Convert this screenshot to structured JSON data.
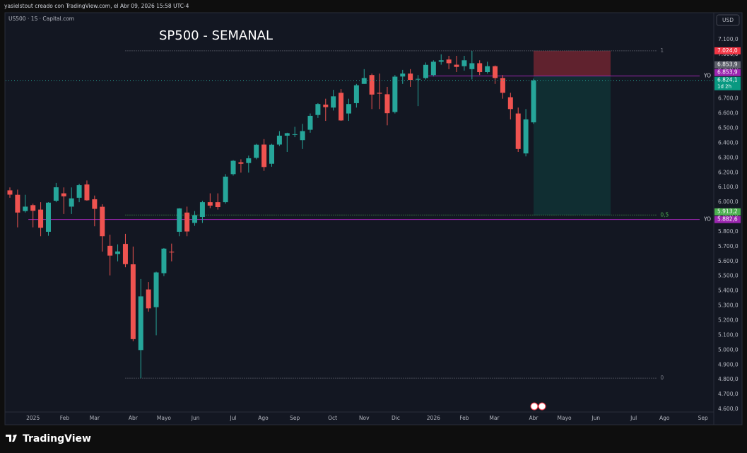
{
  "header": {
    "credit": "yasielstout creado con TradingView.com, el Abr 09, 2026 15:58 UTC-4"
  },
  "footer": {
    "brand": "TradingView"
  },
  "chart_data": {
    "type": "candlestick",
    "symbol": "US500 · 1S · Capital.com",
    "title": "SP500 - SEMANAL",
    "currency": "USD",
    "up_color": "#26a69a",
    "down_color": "#ef5350",
    "grid": false,
    "x": [
      0,
      1,
      2,
      3,
      4,
      5,
      6,
      7,
      8,
      9,
      10,
      11,
      12,
      13,
      14,
      15,
      16,
      17,
      18,
      19,
      20,
      21,
      22,
      23,
      24,
      25,
      26,
      27,
      28,
      29,
      30,
      31,
      32,
      33,
      34,
      35,
      36,
      37,
      38,
      39,
      40,
      41,
      42,
      43,
      44,
      45,
      46,
      47,
      48,
      49,
      50,
      51,
      52,
      53,
      54,
      55,
      56,
      57,
      58,
      59,
      60,
      61,
      62,
      63,
      64,
      65,
      66,
      67,
      68
    ],
    "open": [
      6080,
      6050,
      5940,
      5980,
      5950,
      5800,
      6010,
      6060,
      5970,
      6030,
      6120,
      6020,
      5969,
      5705,
      5650,
      5718,
      5580,
      5000,
      5410,
      5290,
      5520,
      5665,
      5800,
      5930,
      5860,
      5900,
      6000,
      6000,
      6000,
      6190,
      6270,
      6265,
      6300,
      6390,
      6260,
      6390,
      6450,
      6460,
      6420,
      6490,
      6590,
      6660,
      6640,
      6740,
      6600,
      6670,
      6800,
      6860,
      6740,
      6730,
      6610,
      6850,
      6870,
      6830,
      6840,
      6860,
      6950,
      6965,
      6930,
      6920,
      6900,
      6940,
      6880,
      6920,
      6840,
      6710,
      6600,
      6330,
      6540
    ],
    "high": [
      6100,
      6085,
      6050,
      5990,
      6000,
      6000,
      6130,
      6100,
      6100,
      6125,
      6147,
      6045,
      5986,
      5780,
      5715,
      5786,
      5700,
      5480,
      5460,
      5530,
      5690,
      5720,
      5960,
      5970,
      5940,
      6010,
      6060,
      6060,
      6190,
      6285,
      6290,
      6315,
      6395,
      6427,
      6395,
      6481,
      6470,
      6510,
      6530,
      6600,
      6670,
      6700,
      6760,
      6765,
      6700,
      6800,
      6900,
      6870,
      6870,
      6780,
      6860,
      6895,
      6900,
      6860,
      6945,
      6960,
      7000,
      6990,
      6990,
      6990,
      7024,
      6960,
      6950,
      6925,
      6860,
      6740,
      6640,
      6630,
      6835
    ],
    "low": [
      6030,
      5830,
      5930,
      5830,
      5770,
      5773,
      6000,
      5920,
      5920,
      6000,
      6010,
      5837,
      5666,
      5505,
      5600,
      5560,
      5060,
      4810,
      5260,
      5100,
      5500,
      5600,
      5770,
      5770,
      5840,
      5860,
      5960,
      5950,
      5990,
      6180,
      6200,
      6200,
      6290,
      6212,
      6240,
      6380,
      6340,
      6440,
      6360,
      6470,
      6570,
      6550,
      6620,
      6550,
      6550,
      6640,
      6800,
      6630,
      6630,
      6520,
      6600,
      6800,
      6780,
      6650,
      6830,
      6850,
      6930,
      6900,
      6880,
      6890,
      6830,
      6860,
      6870,
      6800,
      6700,
      6560,
      6340,
      6310,
      6530
    ],
    "close": [
      6051,
      5930,
      5970,
      5942,
      5827,
      5997,
      6101,
      6040,
      6026,
      6115,
      6013,
      5955,
      5770,
      5639,
      5667,
      5581,
      5074,
      5363,
      5282,
      5525,
      5686,
      5660,
      5958,
      5802,
      5912,
      6000,
      5977,
      5967,
      6173,
      6280,
      6260,
      6297,
      6389,
      6238,
      6389,
      6450,
      6467,
      6460,
      6481,
      6584,
      6664,
      6643,
      6716,
      6553,
      6664,
      6791,
      6840,
      6728,
      6734,
      6602,
      6849,
      6870,
      6827,
      6834,
      6929,
      6950,
      6960,
      6940,
      6915,
      6960,
      6940,
      6880,
      6920,
      6840,
      6740,
      6630,
      6360,
      6560,
      6824.1
    ],
    "xlim": [
      -0.55,
      91.4
    ],
    "xticks": [
      {
        "value": 3,
        "label": "2025"
      },
      {
        "value": 7.1,
        "label": "Feb"
      },
      {
        "value": 11,
        "label": "Mar"
      },
      {
        "value": 16,
        "label": "Abr"
      },
      {
        "value": 20,
        "label": "Mayo"
      },
      {
        "value": 24.1,
        "label": "Jun"
      },
      {
        "value": 29,
        "label": "Jul"
      },
      {
        "value": 32.9,
        "label": "Ago"
      },
      {
        "value": 37,
        "label": "Sep"
      },
      {
        "value": 41.9,
        "label": "Oct"
      },
      {
        "value": 46,
        "label": "Nov"
      },
      {
        "value": 50.1,
        "label": "Dic"
      },
      {
        "value": 55,
        "label": "2026"
      },
      {
        "value": 59,
        "label": "Feb"
      },
      {
        "value": 62.9,
        "label": "Mar"
      },
      {
        "value": 68,
        "label": "Abr"
      },
      {
        "value": 72,
        "label": "Mayo"
      },
      {
        "value": 76.1,
        "label": "Jun"
      },
      {
        "value": 81,
        "label": "Jul"
      },
      {
        "value": 85,
        "label": "Ago"
      },
      {
        "value": 90,
        "label": "Sep"
      }
    ],
    "ylim": [
      4581,
      7272
    ],
    "yticks": [
      {
        "value": 4600,
        "label": "4.600,0"
      },
      {
        "value": 4700,
        "label": "4.700,0"
      },
      {
        "value": 4800,
        "label": "4.800,0"
      },
      {
        "value": 4900,
        "label": "4.900,0"
      },
      {
        "value": 5000,
        "label": "5.000,0"
      },
      {
        "value": 5100,
        "label": "5.100,0"
      },
      {
        "value": 5200,
        "label": "5.200,0"
      },
      {
        "value": 5300,
        "label": "5.300,0"
      },
      {
        "value": 5400,
        "label": "5.400,0"
      },
      {
        "value": 5500,
        "label": "5.500,0"
      },
      {
        "value": 5600,
        "label": "5.600,0"
      },
      {
        "value": 5700,
        "label": "5.700,0"
      },
      {
        "value": 5800,
        "label": "5.800,0"
      },
      {
        "value": 5900,
        "label": "5.900,0"
      },
      {
        "value": 6000,
        "label": "6.000,0"
      },
      {
        "value": 6100,
        "label": "6.100,0"
      },
      {
        "value": 6200,
        "label": "6.200,0"
      },
      {
        "value": 6300,
        "label": "6.300,0"
      },
      {
        "value": 6400,
        "label": "6.400,0"
      },
      {
        "value": 6500,
        "label": "6.500,0"
      },
      {
        "value": 6600,
        "label": "6.600,0"
      },
      {
        "value": 6700,
        "label": "6.700,0"
      },
      {
        "value": 6800,
        "label": "6.800,0"
      },
      {
        "value": 6900,
        "label": "6.900,0"
      },
      {
        "value": 7000,
        "label": "7.000,0"
      },
      {
        "value": 7100,
        "label": "7.100,0"
      }
    ],
    "fib_x": [
      15,
      84
    ],
    "fib_levels": [
      {
        "value": 7024,
        "label": "1",
        "color": "#787b86"
      },
      {
        "value": 5913.2,
        "label": "0,5",
        "color": "#4caf50"
      },
      {
        "value": 4810,
        "label": "0",
        "color": "#787b86"
      }
    ],
    "position": {
      "x": [
        68,
        78
      ],
      "entry": 6853.9,
      "target": 7024,
      "stop": 5913.2
    },
    "horizontal_lines": [
      {
        "value": 6853.9,
        "label": "YO",
        "color": "#9c27b0",
        "x_start": 53.8
      },
      {
        "value": 5882.6,
        "label": "YO",
        "color": "#9c27b0",
        "x_start": 2.4
      }
    ],
    "price_labels": [
      {
        "value": 7024,
        "label": "7.024,0",
        "color": "#f23645"
      },
      {
        "value": 6853.9,
        "label": "6.853,9",
        "color": "#5d606b"
      },
      {
        "value": 6853.9,
        "label": "6.853,9",
        "color": "#9c27b0"
      },
      {
        "value": 6824.1,
        "label": "6.824,1",
        "color": "#089981",
        "countdown": "1d 2h"
      },
      {
        "value": 5913.2,
        "label": "5.913,2",
        "color": "#4caf50"
      },
      {
        "value": 5882.6,
        "label": "5.882,6",
        "color": "#9c27b0"
      }
    ]
  }
}
